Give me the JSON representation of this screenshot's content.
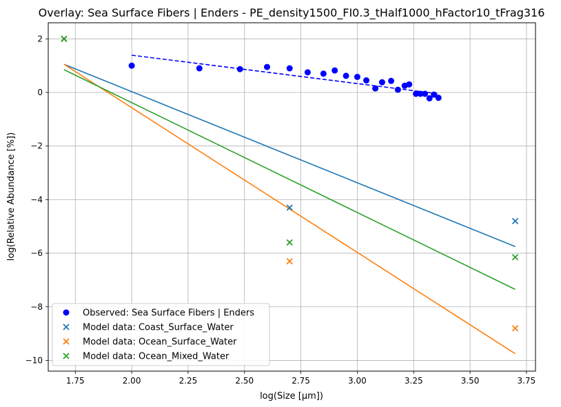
{
  "chart_data": {
    "type": "scatter",
    "title": "Overlay: Sea Surface Fibers | Enders - PE_density1500_FI0.3_tHalf1000_hFactor10_tFrag316",
    "xlabel": "log(Size [μm])",
    "ylabel": "log(Relative Abundance [%])",
    "xlim": [
      1.63,
      3.79
    ],
    "ylim": [
      -10.4,
      2.6
    ],
    "xticks": [
      1.75,
      2.0,
      2.25,
      2.5,
      2.75,
      3.0,
      3.25,
      3.5,
      3.75
    ],
    "xtick_labels": [
      "1.75",
      "2.00",
      "2.25",
      "2.50",
      "2.75",
      "3.00",
      "3.25",
      "3.50",
      "3.75"
    ],
    "yticks": [
      2,
      0,
      -2,
      -4,
      -6,
      -8,
      -10
    ],
    "ytick_labels": [
      "2",
      "0",
      "−2",
      "−4",
      "−6",
      "−8",
      "−10"
    ],
    "grid": true,
    "legend_position": "lower-left",
    "observed": {
      "name": "Observed: Sea Surface Fibers | Enders",
      "color": "#0000ff",
      "marker": "circle",
      "points": [
        [
          2.0,
          1.0
        ],
        [
          2.3,
          0.9
        ],
        [
          2.48,
          0.87
        ],
        [
          2.6,
          0.95
        ],
        [
          2.7,
          0.9
        ],
        [
          2.78,
          0.75
        ],
        [
          2.85,
          0.7
        ],
        [
          2.9,
          0.82
        ],
        [
          2.95,
          0.62
        ],
        [
          3.0,
          0.58
        ],
        [
          3.04,
          0.45
        ],
        [
          3.08,
          0.15
        ],
        [
          3.11,
          0.38
        ],
        [
          3.15,
          0.43
        ],
        [
          3.18,
          0.1
        ],
        [
          3.21,
          0.25
        ],
        [
          3.23,
          0.3
        ],
        [
          3.26,
          -0.05
        ],
        [
          3.28,
          -0.05
        ],
        [
          3.3,
          -0.05
        ],
        [
          3.32,
          -0.22
        ],
        [
          3.34,
          -0.08
        ],
        [
          3.36,
          -0.2
        ]
      ],
      "fit_line": [
        [
          2.0,
          1.39
        ],
        [
          3.36,
          -0.05
        ]
      ]
    },
    "series": [
      {
        "name": "Model data: Coast_Surface_Water",
        "color": "#1f77b4",
        "marker": "x",
        "points": [
          [
            1.7,
            2.0
          ],
          [
            2.7,
            -4.3
          ],
          [
            3.7,
            -4.8
          ]
        ],
        "fit_line": [
          [
            1.7,
            1.05
          ],
          [
            3.7,
            -5.75
          ]
        ]
      },
      {
        "name": "Model data: Ocean_Surface_Water",
        "color": "#ff7f0e",
        "marker": "x",
        "points": [
          [
            1.7,
            2.0
          ],
          [
            2.7,
            -6.3
          ],
          [
            3.7,
            -8.8
          ]
        ],
        "fit_line": [
          [
            1.7,
            1.05
          ],
          [
            3.7,
            -9.75
          ]
        ]
      },
      {
        "name": "Model data: Ocean_Mixed_Water",
        "color": "#2ca02c",
        "marker": "x",
        "points": [
          [
            1.7,
            2.0
          ],
          [
            2.7,
            -5.6
          ],
          [
            3.7,
            -6.15
          ]
        ],
        "fit_line": [
          [
            1.7,
            0.85
          ],
          [
            3.7,
            -7.35
          ]
        ]
      }
    ]
  }
}
